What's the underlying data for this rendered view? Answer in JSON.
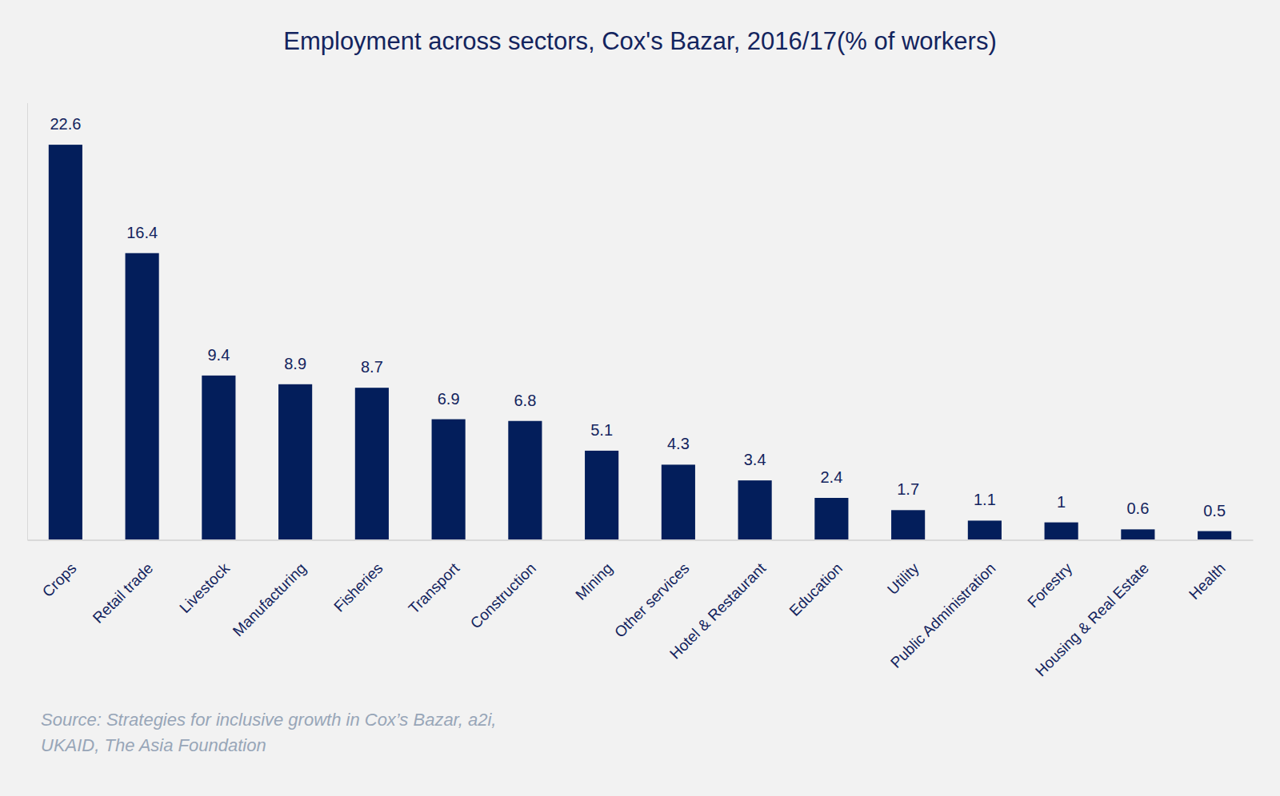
{
  "chart_data": {
    "type": "bar",
    "title": "Employment across sectors, Cox's Bazar, 2016/17(% of workers)",
    "categories": [
      "Crops",
      "Retail trade",
      "Livestock",
      "Manufacturing",
      "Fisheries",
      "Transport",
      "Construction",
      "Mining",
      "Other services",
      "Hotel & Restaurant",
      "Education",
      "Utility",
      "Public Administration",
      "Forestry",
      "Housing & Real Estate",
      "Health"
    ],
    "values": [
      22.6,
      16.4,
      9.4,
      8.9,
      8.7,
      6.9,
      6.8,
      5.1,
      4.3,
      3.4,
      2.4,
      1.7,
      1.1,
      1,
      0.6,
      0.5
    ],
    "color": "#031e5b",
    "ylim": [
      0,
      25
    ],
    "data_labels": true,
    "tick_labels": "x",
    "grid": false,
    "source": [
      "Source: Strategies for inclusive growth in Cox’s Bazar, a2i,",
      "UKAID, The Asia Foundation"
    ]
  }
}
